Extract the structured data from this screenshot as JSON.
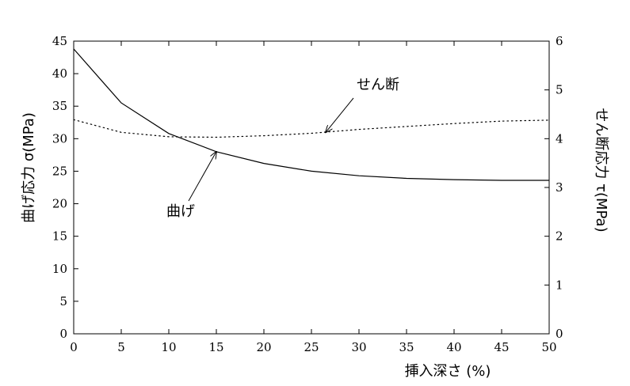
{
  "chart_data": {
    "type": "line",
    "xlabel": "挿入深さ (%)",
    "ylabel_left": "曲げ応力 σ(MPa)",
    "ylabel_right": "せん断応力 τ(MPa)",
    "xlim": [
      0,
      50
    ],
    "ylim_left": [
      0,
      45
    ],
    "ylim_right": [
      0,
      6
    ],
    "x_ticks": [
      0,
      5,
      10,
      15,
      20,
      25,
      30,
      35,
      40,
      45,
      50
    ],
    "y_ticks_left": [
      0,
      5,
      10,
      15,
      20,
      25,
      30,
      35,
      40,
      45
    ],
    "y_ticks_right": [
      0,
      1,
      2,
      3,
      4,
      5,
      6
    ],
    "grid": false,
    "series": [
      {
        "name": "曲げ",
        "axis": "left",
        "style": "solid",
        "x": [
          0,
          5,
          10,
          15,
          20,
          25,
          30,
          35,
          40,
          45,
          50
        ],
        "values": [
          43.8,
          35.5,
          30.8,
          28.0,
          26.2,
          25.0,
          24.3,
          23.9,
          23.7,
          23.6,
          23.6
        ]
      },
      {
        "name": "せん断",
        "axis": "right",
        "style": "dotted",
        "x": [
          0,
          5,
          10,
          15,
          20,
          25,
          30,
          35,
          40,
          45,
          50
        ],
        "values": [
          4.39,
          4.13,
          4.04,
          4.03,
          4.06,
          4.11,
          4.19,
          4.25,
          4.31,
          4.36,
          4.38
        ]
      }
    ],
    "annotations": [
      {
        "text": "せん断",
        "target_series": "せん断",
        "target_x": 26.5,
        "target_y": 4.13
      },
      {
        "text": "曲げ",
        "target_series": "曲げ",
        "target_x": 15,
        "target_y": 28.0
      }
    ]
  }
}
